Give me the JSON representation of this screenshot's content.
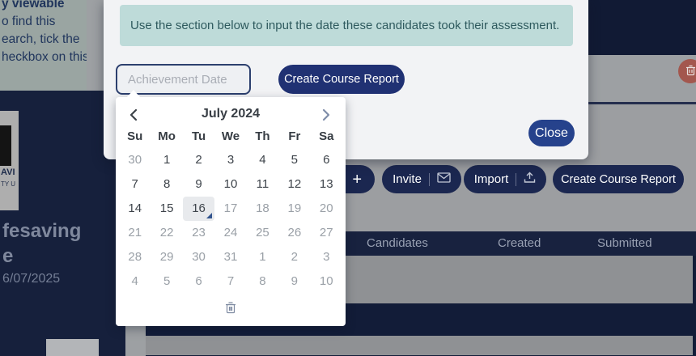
{
  "background": {
    "tooltip": {
      "lines": [
        "y viewable",
        "o find this",
        "earch, tick the",
        "heckbox on this"
      ]
    },
    "course_panel": {
      "logo_text_1": "AVI",
      "logo_text_2": "TY U",
      "title_line_1": "fesaving",
      "title_line_2": "e",
      "date": "6/07/2025"
    },
    "toolbar": {
      "add_label": "+",
      "invite_label": "Invite",
      "import_label": "Import",
      "create_report_label": "Create Course Report"
    },
    "table": {
      "headers": [
        "Candidates",
        "Created",
        "Submitted"
      ]
    }
  },
  "modal": {
    "info_text": "Use the section below to input the date these candidates took their assessment.",
    "date_placeholder": "Achievement Date",
    "create_report_label": "Create Course Report",
    "close_label": "Close"
  },
  "datepicker": {
    "title": "July 2024",
    "weekdays": [
      "Su",
      "Mo",
      "Tu",
      "We",
      "Th",
      "Fr",
      "Sa"
    ],
    "selected_day": "16",
    "weeks": [
      [
        {
          "d": "30",
          "muted": true
        },
        {
          "d": "1"
        },
        {
          "d": "2"
        },
        {
          "d": "3"
        },
        {
          "d": "4"
        },
        {
          "d": "5"
        },
        {
          "d": "6"
        }
      ],
      [
        {
          "d": "7"
        },
        {
          "d": "8"
        },
        {
          "d": "9"
        },
        {
          "d": "10"
        },
        {
          "d": "11"
        },
        {
          "d": "12"
        },
        {
          "d": "13"
        }
      ],
      [
        {
          "d": "14"
        },
        {
          "d": "15"
        },
        {
          "d": "16",
          "selected": true
        },
        {
          "d": "17",
          "muted": true
        },
        {
          "d": "18",
          "muted": true
        },
        {
          "d": "19",
          "muted": true
        },
        {
          "d": "20",
          "muted": true
        }
      ],
      [
        {
          "d": "21",
          "muted": true
        },
        {
          "d": "22",
          "muted": true
        },
        {
          "d": "23",
          "muted": true
        },
        {
          "d": "24",
          "muted": true
        },
        {
          "d": "25",
          "muted": true
        },
        {
          "d": "26",
          "muted": true
        },
        {
          "d": "27",
          "muted": true
        }
      ],
      [
        {
          "d": "28",
          "muted": true
        },
        {
          "d": "29",
          "muted": true
        },
        {
          "d": "30",
          "muted": true
        },
        {
          "d": "31",
          "muted": true
        },
        {
          "d": "1",
          "muted": true
        },
        {
          "d": "2",
          "muted": true
        },
        {
          "d": "3",
          "muted": true
        }
      ],
      [
        {
          "d": "4",
          "muted": true
        },
        {
          "d": "5",
          "muted": true
        },
        {
          "d": "6",
          "muted": true
        },
        {
          "d": "7",
          "muted": true
        },
        {
          "d": "8",
          "muted": true
        },
        {
          "d": "9",
          "muted": true
        },
        {
          "d": "10",
          "muted": true
        }
      ]
    ]
  },
  "colors": {
    "accent_navy": "#203173",
    "close_navy": "#26428c",
    "alert_bg": "#bedbd9",
    "alert_text": "#2e5a5e",
    "danger_red": "#a3574e",
    "dark_panel": "#16203c"
  }
}
